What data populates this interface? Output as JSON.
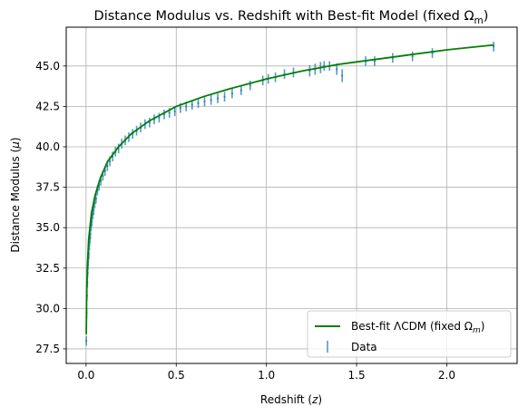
{
  "chart_data": {
    "type": "scatter",
    "title_main": "Distance Modulus vs. Redshift with Best-fit Model (fixed Ω",
    "title_sub": "m",
    "title_close": ")",
    "xlabel_main": "Redshift (",
    "xlabel_var": "z",
    "xlabel_close": ")",
    "ylabel_main": "Distance Modulus (",
    "ylabel_var": "μ",
    "ylabel_close": ")",
    "xlim": [
      -0.11,
      2.39
    ],
    "ylim": [
      26.6,
      47.4
    ],
    "xticks": [
      0.0,
      0.5,
      1.0,
      1.5,
      2.0
    ],
    "xtick_labels": [
      "0.0",
      "0.5",
      "1.0",
      "1.5",
      "2.0"
    ],
    "yticks": [
      27.5,
      30.0,
      32.5,
      35.0,
      37.5,
      40.0,
      42.5,
      45.0
    ],
    "ytick_labels": [
      "27.5",
      "30.0",
      "32.5",
      "35.0",
      "37.5",
      "40.0",
      "42.5",
      "45.0"
    ],
    "grid": true,
    "legend_position": "lower-right",
    "colors": {
      "data": "#1f77b4",
      "model": "#008000",
      "grid": "#b0b0b0"
    },
    "series": [
      {
        "name": "Data",
        "kind": "errorbar",
        "x": [
          0.0015,
          0.003,
          0.005,
          0.007,
          0.009,
          0.011,
          0.013,
          0.015,
          0.018,
          0.021,
          0.024,
          0.028,
          0.032,
          0.037,
          0.042,
          0.048,
          0.055,
          0.063,
          0.072,
          0.082,
          0.093,
          0.105,
          0.118,
          0.132,
          0.147,
          0.163,
          0.18,
          0.198,
          0.217,
          0.237,
          0.258,
          0.28,
          0.303,
          0.327,
          0.352,
          0.378,
          0.405,
          0.433,
          0.462,
          0.492,
          0.523,
          0.555,
          0.588,
          0.622,
          0.657,
          0.693,
          0.73,
          0.768,
          0.81,
          0.86,
          0.91,
          0.98,
          1.01,
          1.05,
          1.1,
          1.15,
          1.24,
          1.27,
          1.3,
          1.32,
          1.35,
          1.39,
          1.42,
          1.55,
          1.6,
          1.7,
          1.81,
          1.92,
          2.26
        ],
        "y": [
          28.0,
          29.7,
          30.8,
          31.6,
          32.2,
          32.7,
          33.1,
          33.4,
          33.9,
          34.3,
          34.6,
          35.1,
          35.4,
          35.8,
          36.1,
          36.5,
          36.8,
          37.3,
          37.6,
          37.9,
          38.2,
          38.5,
          38.8,
          39.1,
          39.4,
          39.7,
          39.9,
          40.2,
          40.4,
          40.6,
          40.8,
          41.0,
          41.2,
          41.4,
          41.5,
          41.7,
          41.8,
          42.0,
          42.1,
          42.2,
          42.4,
          42.5,
          42.6,
          42.7,
          42.8,
          42.9,
          43.0,
          43.1,
          43.3,
          43.5,
          43.8,
          44.1,
          44.2,
          44.3,
          44.5,
          44.6,
          44.7,
          44.8,
          44.9,
          45.0,
          45.0,
          44.8,
          44.4,
          45.3,
          45.3,
          45.5,
          45.6,
          45.8,
          46.2
        ],
        "yerr": [
          0.3,
          0.3,
          0.3,
          0.3,
          0.3,
          0.3,
          0.3,
          0.3,
          0.3,
          0.3,
          0.3,
          0.3,
          0.3,
          0.3,
          0.3,
          0.3,
          0.3,
          0.3,
          0.3,
          0.3,
          0.3,
          0.3,
          0.3,
          0.3,
          0.3,
          0.3,
          0.3,
          0.3,
          0.3,
          0.3,
          0.3,
          0.3,
          0.3,
          0.3,
          0.3,
          0.3,
          0.3,
          0.3,
          0.3,
          0.3,
          0.3,
          0.3,
          0.3,
          0.3,
          0.3,
          0.3,
          0.3,
          0.3,
          0.3,
          0.3,
          0.3,
          0.3,
          0.3,
          0.3,
          0.3,
          0.3,
          0.35,
          0.35,
          0.35,
          0.3,
          0.3,
          0.35,
          0.4,
          0.3,
          0.3,
          0.3,
          0.3,
          0.3,
          0.3
        ]
      },
      {
        "name": "Best-fit ΛCDM (fixed Ω",
        "name_sub": "m",
        "name_close": ")",
        "kind": "line",
        "x": [
          0.001,
          0.003,
          0.007,
          0.015,
          0.03,
          0.05,
          0.08,
          0.12,
          0.18,
          0.25,
          0.35,
          0.5,
          0.65,
          0.8,
          1.0,
          1.2,
          1.4,
          1.6,
          1.8,
          2.0,
          2.26
        ],
        "y": [
          28.4,
          30.8,
          32.6,
          34.3,
          35.9,
          37.0,
          38.1,
          39.1,
          40.0,
          40.8,
          41.6,
          42.5,
          43.1,
          43.6,
          44.2,
          44.7,
          45.1,
          45.4,
          45.7,
          46.0,
          46.3
        ]
      }
    ]
  }
}
